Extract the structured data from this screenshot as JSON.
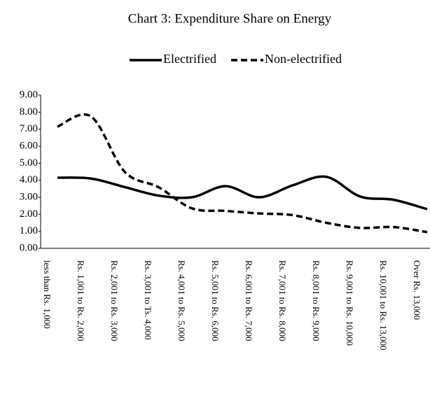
{
  "chart_data": {
    "type": "line",
    "title": "Chart 3: Expenditure Share on Energy",
    "categories": [
      "less than Rs. 1,000",
      "Rs. 1,001 to Rs. 2,000",
      "Rs. 2,001 to Rs. 3,000",
      "Rs. 3,001 to Ts. 4,000",
      "Rs. 4,001 to Rs. 5,000",
      "Rs. 5,001 to Rs. 6,000",
      "Rs. 6,001 to Rs. 7,000",
      "Rs. 7,001 to Rs. 8,000",
      "Rs. 8,001 to Rs. 9,000",
      "Rs. 9,001 to Rs. 10,000",
      "Rs. 10,001 to Rs. 13,000",
      "Over Rs. 13,000"
    ],
    "series": [
      {
        "name": "Electrified",
        "color": "#000000",
        "dash": "solid",
        "values": [
          4.15,
          4.1,
          3.6,
          3.1,
          3.0,
          3.65,
          3.0,
          3.7,
          4.2,
          3.05,
          2.85,
          2.3
        ]
      },
      {
        "name": "Non-electrified",
        "color": "#000000",
        "dash": "dashed",
        "values": [
          7.15,
          7.75,
          4.5,
          3.6,
          2.35,
          2.2,
          2.05,
          1.95,
          1.5,
          1.2,
          1.25,
          0.95
        ]
      }
    ],
    "ylim": [
      0,
      9
    ],
    "yticks": [
      {
        "value": 0,
        "label": "0.00"
      },
      {
        "value": 1,
        "label": "1.00"
      },
      {
        "value": 2,
        "label": "2.00"
      },
      {
        "value": 3,
        "label": "3.00"
      },
      {
        "value": 4,
        "label": "4.00"
      },
      {
        "value": 5,
        "label": "5.00"
      },
      {
        "value": 6,
        "label": "6.00"
      },
      {
        "value": 7,
        "label": "7.00"
      },
      {
        "value": 8,
        "label": "8.00"
      },
      {
        "value": 9,
        "label": "9.00"
      }
    ],
    "grid": false,
    "legend": "top"
  }
}
